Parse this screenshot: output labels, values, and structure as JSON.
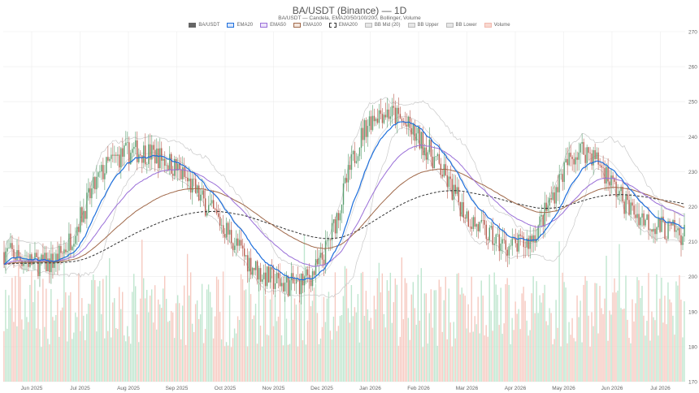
{
  "title": "BA/USDT (Binance) — 1D",
  "subtitle": "BA/USDT — Candela, EMA20/50/100/200, Bollinger, Volume",
  "legend": [
    {
      "label": "BA/USDT",
      "color": "#666666",
      "fill": "#666666"
    },
    {
      "label": "EMA20",
      "color": "#1e6fdc",
      "fill": "#d8e6fb"
    },
    {
      "label": "EMA50",
      "color": "#9a6fd8",
      "fill": "#ece3fa"
    },
    {
      "label": "EMA100",
      "color": "#a0694a",
      "fill": "#f4e6dc"
    },
    {
      "label": "EMA200",
      "color": "#333333",
      "fill": "#ffffff"
    },
    {
      "label": "BB Mid (20)",
      "color": "#bbbbbb",
      "fill": "#e6e6e6"
    },
    {
      "label": "BB Upper",
      "color": "#bbbbbb",
      "fill": "#e6e6e6"
    },
    {
      "label": "BB Lower",
      "color": "#bbbbbb",
      "fill": "#e6e6e6"
    },
    {
      "label": "Volume",
      "color": "#f2b8ad",
      "fill": "#f8d8d0"
    }
  ],
  "colors": {
    "up": "#5a9e6f",
    "down": "#b85c4f",
    "volume_up": "#bfe6cf",
    "volume_down": "#f6c9c0",
    "ema20": "#1e6fdc",
    "ema50": "#9a6fd8",
    "ema100": "#a0694a",
    "ema200": "#333333",
    "bb": "#c8c8c8",
    "grid": "#ececec"
  },
  "chart_data": {
    "type": "candlestick",
    "x_tick_labels": [
      "Jun 2025",
      "Jul 2025",
      "Aug 2025",
      "Sep 2025",
      "Oct 2025",
      "Nov 2025",
      "Dec 2025",
      "Jan 2026",
      "Feb 2026",
      "Mar 2026",
      "Apr 2026",
      "May 2026",
      "Jun 2026",
      "Jul 2026"
    ],
    "y_ticks": [
      170,
      180,
      190,
      200,
      210,
      220,
      230,
      240,
      250,
      260,
      270
    ],
    "ylim": [
      170,
      270
    ],
    "y_axis_side": "right",
    "grid": true,
    "legend_position": "top-center",
    "series_key_points": [
      {
        "month": "Jun 2025",
        "close": 207
      },
      {
        "month": "Jul 2025",
        "close": 205
      },
      {
        "month": "Aug 2025",
        "close": 232
      },
      {
        "month": "Sep 2025",
        "close": 234
      },
      {
        "month": "Oct 2025",
        "close": 218
      },
      {
        "month": "Nov 2025",
        "close": 200
      },
      {
        "month": "Dec 2025",
        "close": 203
      },
      {
        "month": "Jan 2026",
        "close": 245
      },
      {
        "month": "Feb 2026",
        "close": 238
      },
      {
        "month": "Mar 2026",
        "close": 215
      },
      {
        "month": "Apr 2026",
        "close": 210
      },
      {
        "month": "May 2026",
        "close": 236
      },
      {
        "month": "Jun 2026",
        "close": 219
      },
      {
        "month": "Jul 2026",
        "close": 212
      }
    ]
  }
}
